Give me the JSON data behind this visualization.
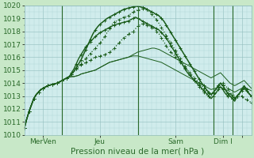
{
  "title": "",
  "xlabel": "Pression niveau de la mer( hPa )",
  "ylim": [
    1010,
    1020
  ],
  "yticks": [
    1010,
    1011,
    1012,
    1013,
    1014,
    1015,
    1016,
    1017,
    1018,
    1019,
    1020
  ],
  "background_color": "#c8e8c8",
  "plot_bg_color": "#d0ecec",
  "grid_minor_color": "#b0d4d4",
  "grid_major_color": "#90bcbc",
  "line_color": "#1a5c1a",
  "tick_label_color": "#2a6a2a",
  "tick_label_fontsize": 6.5,
  "xlabel_fontsize": 7.5,
  "n_points": 97,
  "vline_positions": [
    16,
    48,
    80,
    88
  ],
  "xtick_positions": [
    8,
    32,
    64,
    84,
    92
  ],
  "xtick_labels": [
    "MerVen",
    "Jeu",
    "Sam",
    "Dim I",
    ""
  ],
  "series": [
    {
      "style": "dotted_marker",
      "lw": 0.9,
      "values": [
        1010.5,
        1011.2,
        1011.8,
        1012.3,
        1012.8,
        1013.1,
        1013.3,
        1013.5,
        1013.6,
        1013.7,
        1013.8,
        1013.85,
        1013.9,
        1013.95,
        1014.0,
        1014.1,
        1014.2,
        1014.3,
        1014.4,
        1014.5,
        1014.7,
        1014.9,
        1015.1,
        1015.3,
        1015.4,
        1015.5,
        1015.6,
        1015.7,
        1015.8,
        1015.9,
        1016.0,
        1016.05,
        1016.1,
        1016.15,
        1016.2,
        1016.3,
        1016.4,
        1016.5,
        1016.7,
        1016.9,
        1017.1,
        1017.3,
        1017.5,
        1017.6,
        1017.8,
        1017.9,
        1018.0,
        1018.2,
        1018.4,
        1018.5,
        1018.6,
        1018.6,
        1018.5,
        1018.4,
        1018.3,
        1018.2,
        1018.0,
        1017.8,
        1017.5,
        1017.2,
        1016.9,
        1016.6,
        1016.4,
        1016.2,
        1016.0,
        1015.8,
        1015.6,
        1015.4,
        1015.2,
        1015.0,
        1014.8,
        1014.6,
        1014.4,
        1014.2,
        1014.0,
        1013.8,
        1013.6,
        1013.4,
        1013.2,
        1013.1,
        1013.3,
        1013.5,
        1013.7,
        1013.9,
        1014.0,
        1013.8,
        1013.6,
        1013.3,
        1013.1,
        1012.9,
        1013.0,
        1013.1,
        1013.0,
        1012.8,
        1012.7,
        1012.6,
        1012.5
      ]
    },
    {
      "style": "solid_marker",
      "lw": 1.0,
      "values": [
        1010.5,
        1011.2,
        1011.8,
        1012.3,
        1012.8,
        1013.1,
        1013.3,
        1013.5,
        1013.6,
        1013.7,
        1013.8,
        1013.85,
        1013.9,
        1013.95,
        1014.0,
        1014.1,
        1014.2,
        1014.3,
        1014.4,
        1014.5,
        1014.8,
        1015.1,
        1015.5,
        1015.9,
        1016.2,
        1016.5,
        1016.8,
        1017.0,
        1017.2,
        1017.4,
        1017.6,
        1017.75,
        1017.9,
        1018.0,
        1018.1,
        1018.2,
        1018.3,
        1018.4,
        1018.5,
        1018.55,
        1018.6,
        1018.65,
        1018.7,
        1018.75,
        1018.8,
        1018.9,
        1019.0,
        1019.1,
        1019.0,
        1018.9,
        1018.8,
        1018.7,
        1018.6,
        1018.5,
        1018.4,
        1018.3,
        1018.2,
        1018.1,
        1017.9,
        1017.7,
        1017.5,
        1017.2,
        1016.9,
        1016.6,
        1016.3,
        1016.0,
        1015.7,
        1015.4,
        1015.1,
        1014.8,
        1014.6,
        1014.4,
        1014.2,
        1014.0,
        1013.8,
        1013.6,
        1013.4,
        1013.2,
        1013.0,
        1012.8,
        1013.0,
        1013.2,
        1013.5,
        1013.7,
        1013.5,
        1013.2,
        1013.0,
        1013.2,
        1013.0,
        1012.8,
        1013.0,
        1013.2,
        1013.4,
        1013.6,
        1013.4,
        1013.2,
        1013.0
      ]
    },
    {
      "style": "dotted_marker",
      "lw": 0.9,
      "values": [
        1010.5,
        1011.2,
        1011.8,
        1012.3,
        1012.8,
        1013.1,
        1013.3,
        1013.5,
        1013.6,
        1013.7,
        1013.8,
        1013.85,
        1013.9,
        1013.95,
        1014.0,
        1014.1,
        1014.2,
        1014.3,
        1014.4,
        1014.5,
        1014.7,
        1014.9,
        1015.1,
        1015.3,
        1015.5,
        1015.7,
        1015.9,
        1016.1,
        1016.3,
        1016.5,
        1016.7,
        1016.9,
        1017.1,
        1017.3,
        1017.6,
        1017.9,
        1018.2,
        1018.5,
        1018.7,
        1018.8,
        1018.9,
        1019.0,
        1019.1,
        1019.15,
        1019.2,
        1019.35,
        1019.5,
        1019.6,
        1019.65,
        1019.7,
        1019.75,
        1019.8,
        1019.7,
        1019.5,
        1019.3,
        1019.1,
        1018.9,
        1018.6,
        1018.3,
        1018.0,
        1017.7,
        1017.4,
        1017.1,
        1016.8,
        1016.5,
        1016.2,
        1015.9,
        1015.6,
        1015.3,
        1015.0,
        1014.7,
        1014.4,
        1014.2,
        1013.9,
        1013.7,
        1013.5,
        1013.3,
        1013.1,
        1013.0,
        1013.0,
        1013.2,
        1013.5,
        1013.8,
        1014.0,
        1013.8,
        1013.5,
        1013.2,
        1013.0,
        1012.8,
        1012.7,
        1013.0,
        1013.2,
        1013.5,
        1013.7,
        1013.5,
        1013.2,
        1013.0
      ]
    },
    {
      "style": "solid_marker",
      "lw": 1.1,
      "values": [
        1010.5,
        1011.2,
        1011.8,
        1012.3,
        1012.8,
        1013.1,
        1013.3,
        1013.5,
        1013.6,
        1013.7,
        1013.8,
        1013.85,
        1013.9,
        1013.95,
        1014.0,
        1014.1,
        1014.2,
        1014.3,
        1014.4,
        1014.5,
        1014.7,
        1014.9,
        1015.2,
        1015.5,
        1015.8,
        1016.2,
        1016.6,
        1017.0,
        1017.4,
        1017.8,
        1018.1,
        1018.35,
        1018.55,
        1018.7,
        1018.85,
        1019.0,
        1019.1,
        1019.2,
        1019.3,
        1019.4,
        1019.5,
        1019.6,
        1019.7,
        1019.75,
        1019.8,
        1019.85,
        1019.9,
        1019.93,
        1019.95,
        1019.9,
        1019.85,
        1019.8,
        1019.7,
        1019.6,
        1019.5,
        1019.4,
        1019.3,
        1019.2,
        1019.0,
        1018.8,
        1018.5,
        1018.2,
        1017.9,
        1017.6,
        1017.3,
        1017.0,
        1016.7,
        1016.4,
        1016.1,
        1015.8,
        1015.5,
        1015.2,
        1014.9,
        1014.6,
        1014.3,
        1014.0,
        1013.8,
        1013.5,
        1013.3,
        1013.1,
        1013.3,
        1013.5,
        1013.8,
        1014.0,
        1013.8,
        1013.5,
        1013.2,
        1013.0,
        1012.8,
        1012.6,
        1013.0,
        1013.2,
        1013.5,
        1013.8,
        1013.5,
        1013.2,
        1013.0
      ]
    },
    {
      "style": "solid_thin",
      "lw": 0.7,
      "values": [
        1010.5,
        1011.2,
        1011.8,
        1012.3,
        1012.8,
        1013.1,
        1013.3,
        1013.5,
        1013.6,
        1013.7,
        1013.8,
        1013.85,
        1013.9,
        1013.95,
        1014.0,
        1014.1,
        1014.2,
        1014.3,
        1014.4,
        1014.45,
        1014.5,
        1014.5,
        1014.55,
        1014.6,
        1014.7,
        1014.75,
        1014.8,
        1014.85,
        1014.9,
        1014.95,
        1015.0,
        1015.1,
        1015.2,
        1015.3,
        1015.4,
        1015.5,
        1015.6,
        1015.65,
        1015.7,
        1015.75,
        1015.8,
        1015.85,
        1015.9,
        1015.95,
        1016.0,
        1016.05,
        1016.1,
        1016.1,
        1016.1,
        1016.05,
        1016.0,
        1015.95,
        1015.9,
        1015.85,
        1015.8,
        1015.75,
        1015.7,
        1015.65,
        1015.6,
        1015.5,
        1015.4,
        1015.3,
        1015.2,
        1015.1,
        1015.0,
        1014.9,
        1014.8,
        1014.7,
        1014.6,
        1014.5,
        1014.4,
        1014.3,
        1014.2,
        1014.1,
        1014.0,
        1013.9,
        1013.8,
        1013.7,
        1013.6,
        1013.5,
        1013.55,
        1013.6,
        1013.65,
        1013.7,
        1013.6,
        1013.5,
        1013.4,
        1013.5,
        1013.4,
        1013.3,
        1013.4,
        1013.5,
        1013.6,
        1013.7,
        1013.6,
        1013.5,
        1013.4
      ]
    },
    {
      "style": "solid_thin",
      "lw": 0.7,
      "values": [
        1010.5,
        1011.2,
        1011.8,
        1012.3,
        1012.8,
        1013.1,
        1013.3,
        1013.5,
        1013.6,
        1013.7,
        1013.8,
        1013.85,
        1013.9,
        1013.95,
        1014.0,
        1014.1,
        1014.2,
        1014.3,
        1014.4,
        1014.45,
        1014.5,
        1014.5,
        1014.55,
        1014.6,
        1014.7,
        1014.75,
        1014.8,
        1014.85,
        1014.9,
        1014.95,
        1015.0,
        1015.1,
        1015.2,
        1015.3,
        1015.4,
        1015.5,
        1015.6,
        1015.65,
        1015.7,
        1015.75,
        1015.8,
        1015.85,
        1015.9,
        1015.95,
        1016.0,
        1016.1,
        1016.2,
        1016.3,
        1016.4,
        1016.45,
        1016.5,
        1016.55,
        1016.6,
        1016.65,
        1016.7,
        1016.7,
        1016.65,
        1016.6,
        1016.5,
        1016.4,
        1016.3,
        1016.2,
        1016.1,
        1016.0,
        1015.9,
        1015.8,
        1015.7,
        1015.6,
        1015.5,
        1015.4,
        1015.3,
        1015.2,
        1015.1,
        1015.0,
        1014.9,
        1014.8,
        1014.7,
        1014.6,
        1014.5,
        1014.4,
        1014.5,
        1014.6,
        1014.7,
        1014.8,
        1014.6,
        1014.4,
        1014.2,
        1014.0,
        1013.9,
        1013.8,
        1013.9,
        1014.0,
        1014.1,
        1014.2,
        1014.0,
        1013.8,
        1013.6
      ]
    }
  ]
}
